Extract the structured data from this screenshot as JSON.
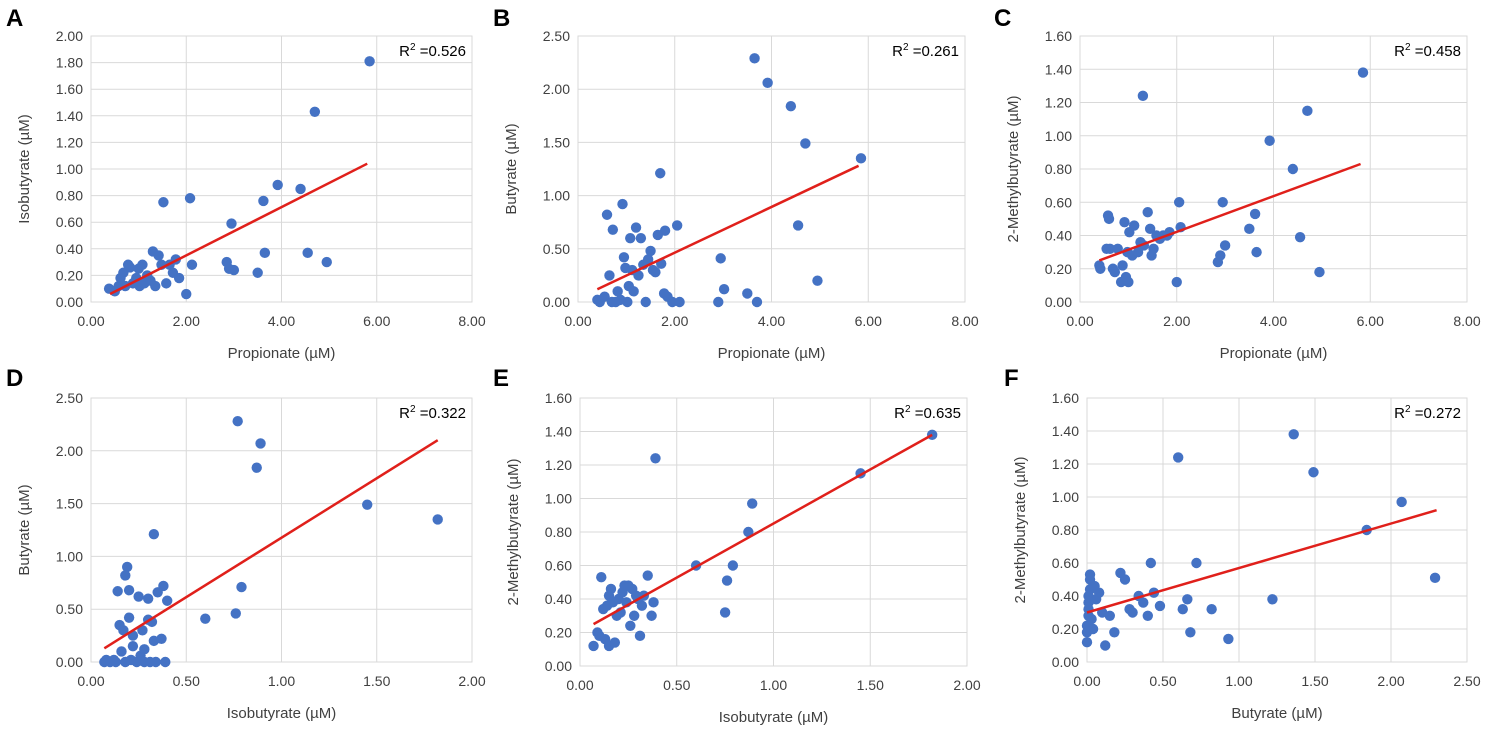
{
  "chart_data": [
    {
      "panel": "A",
      "type": "scatter",
      "xlabel": "Propionate (µM)",
      "ylabel": "Isobutyrate (µM)",
      "xlim": [
        0,
        8
      ],
      "ylim": [
        0,
        2
      ],
      "xticks": [
        "0.00",
        "2.00",
        "4.00",
        "6.00",
        "8.00"
      ],
      "yticks": [
        "0.00",
        "0.20",
        "0.40",
        "0.60",
        "0.80",
        "1.00",
        "1.20",
        "1.40",
        "1.60",
        "1.80",
        "2.00"
      ],
      "r2_label": "R",
      "r2_sup": "2",
      "r2_value": " =0.526",
      "trend": [
        [
          0.4,
          0.06
        ],
        [
          5.8,
          1.04
        ]
      ],
      "points": [
        [
          0.38,
          0.1
        ],
        [
          0.5,
          0.08
        ],
        [
          0.58,
          0.12
        ],
        [
          0.62,
          0.18
        ],
        [
          0.68,
          0.22
        ],
        [
          0.72,
          0.12
        ],
        [
          0.78,
          0.28
        ],
        [
          0.82,
          0.26
        ],
        [
          0.88,
          0.14
        ],
        [
          0.95,
          0.18
        ],
        [
          1.0,
          0.25
        ],
        [
          1.02,
          0.12
        ],
        [
          1.08,
          0.28
        ],
        [
          1.12,
          0.14
        ],
        [
          1.18,
          0.2
        ],
        [
          1.25,
          0.16
        ],
        [
          1.3,
          0.38
        ],
        [
          1.35,
          0.12
        ],
        [
          1.42,
          0.35
        ],
        [
          1.48,
          0.28
        ],
        [
          1.52,
          0.75
        ],
        [
          1.58,
          0.14
        ],
        [
          1.65,
          0.28
        ],
        [
          1.72,
          0.22
        ],
        [
          1.78,
          0.32
        ],
        [
          1.85,
          0.18
        ],
        [
          2.0,
          0.06
        ],
        [
          2.08,
          0.78
        ],
        [
          2.12,
          0.28
        ],
        [
          2.85,
          0.3
        ],
        [
          2.9,
          0.25
        ],
        [
          2.95,
          0.59
        ],
        [
          3.0,
          0.24
        ],
        [
          3.5,
          0.22
        ],
        [
          3.62,
          0.76
        ],
        [
          3.65,
          0.37
        ],
        [
          3.92,
          0.88
        ],
        [
          4.4,
          0.85
        ],
        [
          4.55,
          0.37
        ],
        [
          4.7,
          1.43
        ],
        [
          4.95,
          0.3
        ],
        [
          5.85,
          1.81
        ]
      ]
    },
    {
      "panel": "B",
      "type": "scatter",
      "xlabel": "Propionate (µM)",
      "ylabel": "Butyrate (µM)",
      "xlim": [
        0,
        8
      ],
      "ylim": [
        0,
        2.5
      ],
      "xticks": [
        "0.00",
        "2.00",
        "4.00",
        "6.00",
        "8.00"
      ],
      "yticks": [
        "0.00",
        "0.50",
        "1.00",
        "1.50",
        "2.00",
        "2.50"
      ],
      "r2_label": "R",
      "r2_sup": "2",
      "r2_value": " =0.261",
      "trend": [
        [
          0.4,
          0.12
        ],
        [
          5.8,
          1.28
        ]
      ],
      "points": [
        [
          0.4,
          0.02
        ],
        [
          0.45,
          0.0
        ],
        [
          0.55,
          0.05
        ],
        [
          0.6,
          0.82
        ],
        [
          0.65,
          0.25
        ],
        [
          0.7,
          0.0
        ],
        [
          0.72,
          0.68
        ],
        [
          0.78,
          0.0
        ],
        [
          0.82,
          0.1
        ],
        [
          0.88,
          0.02
        ],
        [
          0.92,
          0.92
        ],
        [
          0.95,
          0.42
        ],
        [
          0.98,
          0.32
        ],
        [
          1.02,
          0.0
        ],
        [
          1.05,
          0.15
        ],
        [
          1.08,
          0.6
        ],
        [
          1.12,
          0.3
        ],
        [
          1.15,
          0.1
        ],
        [
          1.2,
          0.7
        ],
        [
          1.25,
          0.25
        ],
        [
          1.3,
          0.6
        ],
        [
          1.35,
          0.35
        ],
        [
          1.4,
          0.0
        ],
        [
          1.45,
          0.4
        ],
        [
          1.5,
          0.48
        ],
        [
          1.55,
          0.3
        ],
        [
          1.6,
          0.28
        ],
        [
          1.65,
          0.63
        ],
        [
          1.7,
          1.21
        ],
        [
          1.72,
          0.36
        ],
        [
          1.78,
          0.08
        ],
        [
          1.8,
          0.67
        ],
        [
          1.85,
          0.05
        ],
        [
          1.95,
          0.0
        ],
        [
          2.05,
          0.72
        ],
        [
          2.1,
          0.0
        ],
        [
          2.9,
          0.0
        ],
        [
          2.95,
          0.41
        ],
        [
          3.02,
          0.12
        ],
        [
          3.5,
          0.08
        ],
        [
          3.65,
          2.29
        ],
        [
          3.7,
          0.0
        ],
        [
          3.92,
          2.06
        ],
        [
          4.4,
          1.84
        ],
        [
          4.55,
          0.72
        ],
        [
          4.7,
          1.49
        ],
        [
          4.95,
          0.2
        ],
        [
          5.85,
          1.35
        ]
      ]
    },
    {
      "panel": "C",
      "type": "scatter",
      "xlabel": "Propionate (µM)",
      "ylabel": "2-Methylbutyrate  (µM)",
      "xlim": [
        0,
        8
      ],
      "ylim": [
        0,
        1.6
      ],
      "xticks": [
        "0.00",
        "2.00",
        "4.00",
        "6.00",
        "8.00"
      ],
      "yticks": [
        "0.00",
        "0.20",
        "0.40",
        "0.60",
        "0.80",
        "1.00",
        "1.20",
        "1.40",
        "1.60"
      ],
      "r2_label": "R",
      "r2_sup": "2",
      "r2_value": " =0.458",
      "trend": [
        [
          0.4,
          0.25
        ],
        [
          5.8,
          0.83
        ]
      ],
      "points": [
        [
          0.4,
          0.22
        ],
        [
          0.42,
          0.2
        ],
        [
          0.55,
          0.32
        ],
        [
          0.58,
          0.52
        ],
        [
          0.6,
          0.5
        ],
        [
          0.62,
          0.32
        ],
        [
          0.68,
          0.2
        ],
        [
          0.72,
          0.18
        ],
        [
          0.78,
          0.32
        ],
        [
          0.85,
          0.12
        ],
        [
          0.88,
          0.22
        ],
        [
          0.92,
          0.48
        ],
        [
          0.95,
          0.15
        ],
        [
          0.98,
          0.3
        ],
        [
          1.0,
          0.12
        ],
        [
          1.02,
          0.42
        ],
        [
          1.08,
          0.28
        ],
        [
          1.12,
          0.46
        ],
        [
          1.2,
          0.3
        ],
        [
          1.25,
          0.36
        ],
        [
          1.3,
          1.24
        ],
        [
          1.32,
          0.34
        ],
        [
          1.4,
          0.54
        ],
        [
          1.45,
          0.44
        ],
        [
          1.48,
          0.28
        ],
        [
          1.52,
          0.32
        ],
        [
          1.58,
          0.4
        ],
        [
          1.65,
          0.38
        ],
        [
          1.72,
          0.4
        ],
        [
          1.8,
          0.4
        ],
        [
          1.85,
          0.42
        ],
        [
          2.0,
          0.12
        ],
        [
          2.05,
          0.6
        ],
        [
          2.08,
          0.45
        ],
        [
          2.85,
          0.24
        ],
        [
          2.9,
          0.28
        ],
        [
          2.95,
          0.6
        ],
        [
          3.0,
          0.34
        ],
        [
          3.5,
          0.44
        ],
        [
          3.62,
          0.53
        ],
        [
          3.65,
          0.3
        ],
        [
          3.92,
          0.97
        ],
        [
          4.4,
          0.8
        ],
        [
          4.55,
          0.39
        ],
        [
          4.7,
          1.15
        ],
        [
          4.95,
          0.18
        ],
        [
          5.85,
          1.38
        ]
      ]
    },
    {
      "panel": "D",
      "type": "scatter",
      "xlabel": "Isobutyrate (µM)",
      "ylabel": "Butyrate (µM)",
      "xlim": [
        0,
        2
      ],
      "ylim": [
        0,
        2.5
      ],
      "xticks": [
        "0.00",
        "0.50",
        "1.00",
        "1.50",
        "2.00"
      ],
      "yticks": [
        "0.00",
        "0.50",
        "1.00",
        "1.50",
        "2.00",
        "2.50"
      ],
      "r2_label": "R",
      "r2_sup": "2",
      "r2_value": " =0.322",
      "trend": [
        [
          0.07,
          0.13
        ],
        [
          1.82,
          2.1
        ]
      ],
      "points": [
        [
          0.07,
          0.0
        ],
        [
          0.08,
          0.02
        ],
        [
          0.1,
          0.0
        ],
        [
          0.12,
          0.02
        ],
        [
          0.13,
          0.0
        ],
        [
          0.14,
          0.67
        ],
        [
          0.15,
          0.35
        ],
        [
          0.16,
          0.1
        ],
        [
          0.17,
          0.3
        ],
        [
          0.18,
          0.0
        ],
        [
          0.18,
          0.82
        ],
        [
          0.19,
          0.9
        ],
        [
          0.2,
          0.42
        ],
        [
          0.2,
          0.68
        ],
        [
          0.21,
          0.02
        ],
        [
          0.22,
          0.25
        ],
        [
          0.22,
          0.15
        ],
        [
          0.24,
          0.0
        ],
        [
          0.25,
          0.62
        ],
        [
          0.26,
          0.06
        ],
        [
          0.27,
          0.3
        ],
        [
          0.28,
          0.12
        ],
        [
          0.28,
          0.0
        ],
        [
          0.3,
          0.4
        ],
        [
          0.3,
          0.6
        ],
        [
          0.31,
          0.0
        ],
        [
          0.32,
          0.38
        ],
        [
          0.33,
          0.2
        ],
        [
          0.33,
          1.21
        ],
        [
          0.34,
          0.0
        ],
        [
          0.35,
          0.66
        ],
        [
          0.37,
          0.22
        ],
        [
          0.38,
          0.72
        ],
        [
          0.39,
          0.0
        ],
        [
          0.4,
          0.58
        ],
        [
          0.6,
          0.41
        ],
        [
          0.76,
          0.46
        ],
        [
          0.77,
          2.28
        ],
        [
          0.79,
          0.71
        ],
        [
          0.87,
          1.84
        ],
        [
          0.89,
          2.07
        ],
        [
          1.45,
          1.49
        ],
        [
          1.82,
          1.35
        ]
      ]
    },
    {
      "panel": "E",
      "type": "scatter",
      "xlabel": "Isobutyrate (µM)",
      "ylabel": "2-Methylbutyrate  (µM)",
      "xlim": [
        0,
        2
      ],
      "ylim": [
        0,
        1.6
      ],
      "xticks": [
        "0.00",
        "0.50",
        "1.00",
        "1.50",
        "2.00"
      ],
      "yticks": [
        "0.00",
        "0.20",
        "0.40",
        "0.60",
        "0.80",
        "1.00",
        "1.20",
        "1.40",
        "1.60"
      ],
      "r2_label": "R",
      "r2_sup": "2",
      "r2_value": " =0.635",
      "trend": [
        [
          0.07,
          0.25
        ],
        [
          1.82,
          1.38
        ]
      ],
      "points": [
        [
          0.07,
          0.12
        ],
        [
          0.09,
          0.2
        ],
        [
          0.1,
          0.18
        ],
        [
          0.11,
          0.53
        ],
        [
          0.12,
          0.34
        ],
        [
          0.13,
          0.16
        ],
        [
          0.14,
          0.36
        ],
        [
          0.15,
          0.12
        ],
        [
          0.15,
          0.42
        ],
        [
          0.16,
          0.46
        ],
        [
          0.17,
          0.38
        ],
        [
          0.18,
          0.14
        ],
        [
          0.19,
          0.3
        ],
        [
          0.2,
          0.4
        ],
        [
          0.21,
          0.32
        ],
        [
          0.22,
          0.44
        ],
        [
          0.23,
          0.48
        ],
        [
          0.24,
          0.38
        ],
        [
          0.25,
          0.48
        ],
        [
          0.26,
          0.24
        ],
        [
          0.27,
          0.46
        ],
        [
          0.28,
          0.3
        ],
        [
          0.29,
          0.42
        ],
        [
          0.3,
          0.4
        ],
        [
          0.31,
          0.18
        ],
        [
          0.32,
          0.36
        ],
        [
          0.33,
          0.42
        ],
        [
          0.35,
          0.54
        ],
        [
          0.37,
          0.3
        ],
        [
          0.38,
          0.38
        ],
        [
          0.39,
          1.24
        ],
        [
          0.6,
          0.6
        ],
        [
          0.75,
          0.32
        ],
        [
          0.76,
          0.51
        ],
        [
          0.79,
          0.6
        ],
        [
          0.87,
          0.8
        ],
        [
          0.89,
          0.97
        ],
        [
          1.45,
          1.15
        ],
        [
          1.82,
          1.38
        ]
      ]
    },
    {
      "panel": "F",
      "type": "scatter",
      "xlabel": "Butyrate (µM)",
      "ylabel": "2-Methylbutyrate  (µM)",
      "xlim": [
        0,
        2.5
      ],
      "ylim": [
        0,
        1.6
      ],
      "xticks": [
        "0.00",
        "0.50",
        "1.00",
        "1.50",
        "2.00",
        "2.50"
      ],
      "yticks": [
        "0.00",
        "0.20",
        "0.40",
        "0.60",
        "0.80",
        "1.00",
        "1.20",
        "1.40",
        "1.60"
      ],
      "r2_label": "R",
      "r2_sup": "2",
      "r2_value": " =0.272",
      "trend": [
        [
          0.0,
          0.3
        ],
        [
          2.3,
          0.92
        ]
      ],
      "points": [
        [
          0.0,
          0.12
        ],
        [
          0.0,
          0.18
        ],
        [
          0.0,
          0.22
        ],
        [
          0.01,
          0.28
        ],
        [
          0.01,
          0.32
        ],
        [
          0.01,
          0.36
        ],
        [
          0.01,
          0.4
        ],
        [
          0.02,
          0.44
        ],
        [
          0.02,
          0.5
        ],
        [
          0.02,
          0.53
        ],
        [
          0.03,
          0.26
        ],
        [
          0.04,
          0.2
        ],
        [
          0.05,
          0.46
        ],
        [
          0.06,
          0.38
        ],
        [
          0.08,
          0.42
        ],
        [
          0.1,
          0.3
        ],
        [
          0.12,
          0.1
        ],
        [
          0.15,
          0.28
        ],
        [
          0.18,
          0.18
        ],
        [
          0.22,
          0.54
        ],
        [
          0.25,
          0.5
        ],
        [
          0.28,
          0.32
        ],
        [
          0.3,
          0.3
        ],
        [
          0.34,
          0.4
        ],
        [
          0.37,
          0.36
        ],
        [
          0.4,
          0.28
        ],
        [
          0.42,
          0.6
        ],
        [
          0.44,
          0.42
        ],
        [
          0.48,
          0.34
        ],
        [
          0.6,
          1.24
        ],
        [
          0.63,
          0.32
        ],
        [
          0.66,
          0.38
        ],
        [
          0.68,
          0.18
        ],
        [
          0.72,
          0.6
        ],
        [
          0.82,
          0.32
        ],
        [
          0.93,
          0.14
        ],
        [
          1.22,
          0.38
        ],
        [
          1.36,
          1.38
        ],
        [
          1.49,
          1.15
        ],
        [
          1.84,
          0.8
        ],
        [
          2.07,
          0.97
        ],
        [
          2.29,
          0.51
        ]
      ]
    }
  ]
}
